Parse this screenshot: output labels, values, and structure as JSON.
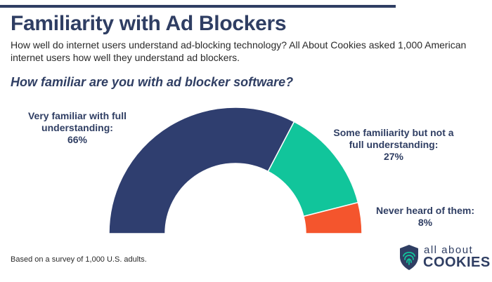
{
  "header": {
    "title": "Familiarity with Ad Blockers",
    "subtitle": "How well do internet users understand ad-blocking technology? All About Cookies asked 1,000 American internet users how well they understand ad blockers."
  },
  "chart_data": {
    "type": "pie",
    "variant": "half-donut",
    "title": "How familiar are you with ad blocker software?",
    "categories": [
      "Very familiar with full understanding:",
      "Some familiarity but not a full understanding:",
      "Never heard of them:"
    ],
    "values": [
      66,
      27,
      8
    ],
    "labels": [
      "66%",
      "27%",
      "8%"
    ],
    "colors": [
      "#2f3e6f",
      "#11c59b",
      "#f4552d"
    ],
    "legend": "none"
  },
  "footer": {
    "note": "Based on a survey of 1,000 U.S. adults.",
    "logo_top": "all about",
    "logo_bottom": "COOKIES",
    "logo_icon": "shield-fingerprint-icon"
  }
}
